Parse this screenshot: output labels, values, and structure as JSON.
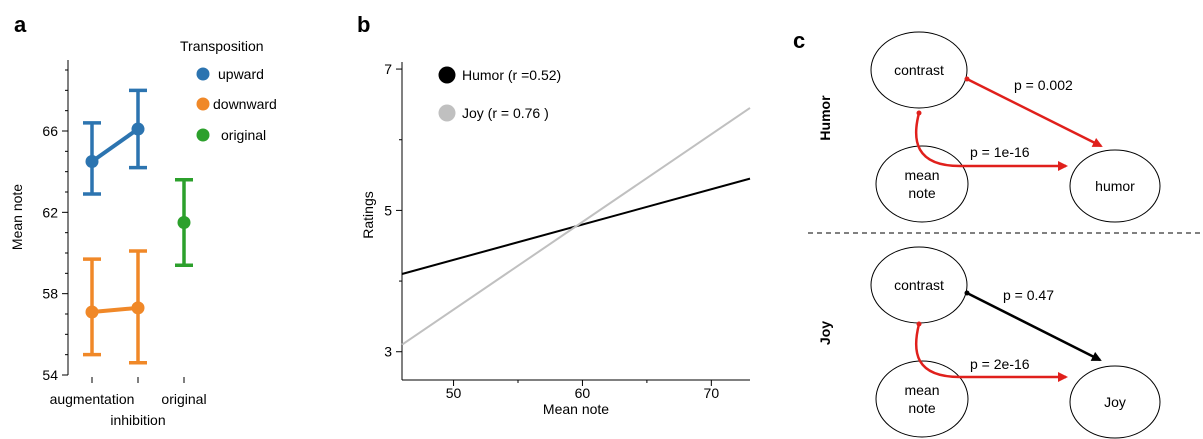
{
  "panels": {
    "a": "a",
    "b": "b",
    "c": "c"
  },
  "chart_data": [
    {
      "type": "scatter",
      "panel": "a",
      "ylabel": "Mean note",
      "ylim": [
        54,
        69
      ],
      "yticks": [
        54,
        58,
        62,
        66
      ],
      "categories": [
        "augmentation",
        "inhibition",
        "original"
      ],
      "legend_title": "Transposition",
      "legend_position": "top-right",
      "series": [
        {
          "name": "upward",
          "color": "#2c74b0",
          "points": [
            {
              "category": "augmentation",
              "mean": 64.5,
              "low": 62.9,
              "high": 66.4
            },
            {
              "category": "inhibition",
              "mean": 66.1,
              "low": 64.2,
              "high": 68.0
            }
          ]
        },
        {
          "name": "downward",
          "color": "#f08828",
          "points": [
            {
              "category": "augmentation",
              "mean": 57.1,
              "low": 55.0,
              "high": 59.7
            },
            {
              "category": "inhibition",
              "mean": 57.3,
              "low": 54.6,
              "high": 60.1
            }
          ]
        },
        {
          "name": "original",
          "color": "#2ca02c",
          "points": [
            {
              "category": "original",
              "mean": 61.5,
              "low": 59.4,
              "high": 63.6
            }
          ]
        }
      ]
    },
    {
      "type": "line",
      "panel": "b",
      "xlabel": "Mean note",
      "ylabel": "Ratings",
      "xlim": [
        46,
        73
      ],
      "ylim": [
        2.6,
        7.1
      ],
      "xticks": [
        50,
        60,
        70
      ],
      "yticks": [
        3,
        5,
        7
      ],
      "legend_position": "top-left",
      "series": [
        {
          "name": "Humor (r =0.52)",
          "color": "#000000",
          "x": [
            46,
            73
          ],
          "y": [
            4.1,
            5.45
          ]
        },
        {
          "name": "Joy (r = 0.76 )",
          "color": "#c0c0c0",
          "x": [
            46,
            73
          ],
          "y": [
            3.1,
            6.45
          ]
        }
      ]
    }
  ],
  "diagram": {
    "panel": "c",
    "groups": [
      {
        "label": "Humor",
        "nodes": {
          "contrast": "contrast",
          "mean_line1": "mean",
          "mean_line2": "note",
          "outcome": "humor"
        },
        "edges": [
          {
            "label": "p = 0.002",
            "color": "#e0201c"
          },
          {
            "label": "p = 1e-16",
            "color": "#e0201c"
          }
        ]
      },
      {
        "label": "Joy",
        "nodes": {
          "contrast": "contrast",
          "mean_line1": "mean",
          "mean_line2": "note",
          "outcome": "Joy"
        },
        "edges": [
          {
            "label": "p = 0.47",
            "color": "#000000"
          },
          {
            "label": "p = 2e-16",
            "color": "#e0201c"
          }
        ]
      }
    ]
  }
}
